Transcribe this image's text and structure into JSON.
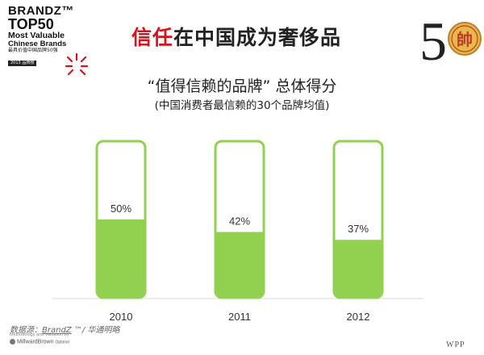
{
  "logo": {
    "line1": "BRANDZ™",
    "line2": "TOP50",
    "line3": "Most Valuable",
    "line4": "Chinese Brands",
    "line5": "最具价值中国品牌50强",
    "line6": "2013 品牌榜"
  },
  "badge": {
    "number": "5",
    "seal_char": "帥"
  },
  "title": {
    "accent": "信任",
    "rest": "在中国成为奢侈品"
  },
  "subtitle": "“值得信赖的品牌” 总体得分",
  "subtitle2": "(中国消费者最信赖的30个品牌均值)",
  "chart_data": {
    "type": "bar",
    "categories": [
      "2010",
      "2011",
      "2012"
    ],
    "values": [
      50,
      42,
      37
    ],
    "value_labels": [
      "50%",
      "42%",
      "37%"
    ],
    "unit": "%",
    "ylim": [
      0,
      100
    ],
    "grid": false,
    "colors": {
      "fill": "#92d050",
      "outline": "#92d050",
      "background": "#ffffff"
    }
  },
  "footer": {
    "source_prefix": "数据源：",
    "source_brand": "BrandZ",
    "source_suffix": " ™/ 华通明略",
    "method": "Methodology and Valuation by",
    "mb": "MillwardBrown",
    "mb_sub": "Optimor",
    "wpp": "WPP"
  }
}
